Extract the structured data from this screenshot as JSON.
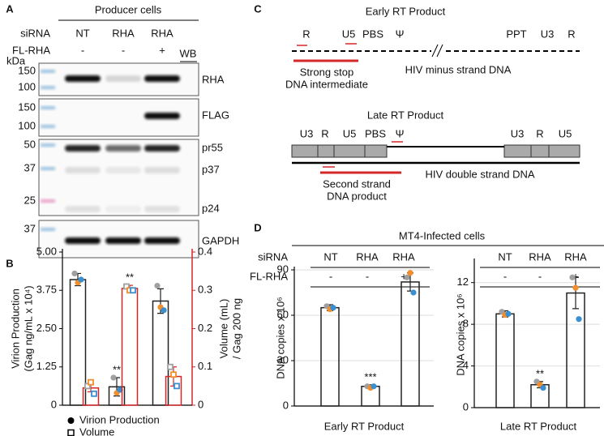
{
  "panel_a": {
    "letter": "A",
    "header": "Producer cells",
    "rows": [
      {
        "label": "siRNA",
        "cells": [
          "NT",
          "RHA",
          "RHA"
        ]
      },
      {
        "label": "FL-RHA",
        "cells": [
          "-",
          "-",
          "+"
        ]
      }
    ],
    "wb": "WB",
    "kda": "kDa",
    "blots": [
      {
        "markers": [
          150,
          100
        ],
        "proteins": [
          "RHA"
        ]
      },
      {
        "markers": [
          150,
          100
        ],
        "proteins": [
          "FLAG"
        ]
      },
      {
        "markers": [
          50,
          37,
          25
        ],
        "proteins": [
          "pr55",
          "p37",
          "p24"
        ]
      },
      {
        "markers": [
          37
        ],
        "proteins": [
          "GAPDH"
        ]
      }
    ]
  },
  "panel_b": {
    "letter": "B"
  },
  "panel_c": {
    "letter": "C",
    "early": {
      "title": "Early RT Product",
      "regions": [
        "R",
        "U5",
        "PBS",
        "Ψ",
        "PPT",
        "U3",
        "R"
      ],
      "strand": "HIV minus strand DNA",
      "product": [
        "Strong stop",
        "DNA intermediate"
      ]
    },
    "late": {
      "title": "Late RT Product",
      "regions": [
        "U3",
        "R",
        "U5",
        "PBS",
        "Ψ",
        "U3",
        "R",
        "U5"
      ],
      "strand": "HIV double strand DNA",
      "product": [
        "Second strand",
        "DNA product"
      ]
    }
  },
  "panel_d": {
    "letter": "D",
    "header": "MT4-Infected cells",
    "rows": [
      {
        "label": "siRNA",
        "cells": [
          "NT",
          "RHA",
          "RHA",
          "NT",
          "RHA",
          "RHA"
        ]
      },
      {
        "label": "FL-RHA",
        "cells": [
          "-",
          "-",
          "+",
          "-",
          "-",
          "+"
        ]
      }
    ]
  },
  "chart_data": [
    {
      "type": "bar",
      "categories": [
        null,
        null,
        null
      ],
      "ylabel": [
        "Virion Production",
        "(Gag ng/mL x 10⁴)"
      ],
      "y2label": [
        "Volume (mL)",
        "/ Gag 200 ng"
      ],
      "ylim": [
        0,
        5
      ],
      "yticks": [
        0,
        1.25,
        {
          "value": 2.5,
          "label": "2.50"
        },
        3.75,
        {
          "value": 5,
          "label": "5.00"
        }
      ],
      "y2lim": [
        0,
        0.4
      ],
      "y2ticks": [
        0,
        0.1,
        0.2,
        0.3,
        0.4
      ],
      "point_colors": [
        "#a0a0a0",
        "#f28e2b",
        "#3a8fd0"
      ],
      "legend": "bottom",
      "series": [
        {
          "name": "Virion Production",
          "color": "#222222",
          "values": [
            4.1,
            0.6,
            3.4
          ],
          "errors": [
            0.2,
            0.3,
            0.4
          ],
          "points": [
            [
              4.3,
              4.0,
              4.1
            ],
            [
              0.9,
              0.4,
              0.5
            ],
            [
              3.9,
              3.2,
              3.1
            ]
          ]
        },
        {
          "name": "Volume",
          "color": "#d62728",
          "axis": "y2",
          "values": [
            0.045,
            0.305,
            0.075
          ],
          "errors": [
            0.01,
            0.008,
            0.025
          ],
          "points": [
            [
              0.05,
              0.06,
              0.03
            ],
            [
              0.31,
              0.3,
              0.3
            ],
            [
              0.1,
              0.08,
              0.05
            ]
          ]
        }
      ],
      "annotations": [
        "**",
        "**"
      ]
    },
    {
      "type": "bar",
      "categories": [
        null,
        null,
        null
      ],
      "xlabel": "Early RT Product",
      "ylabel": [
        "DNA copies x 10⁶"
      ],
      "ylim": [
        0,
        90
      ],
      "yticks": [
        0,
        30,
        60,
        90
      ],
      "grid": true,
      "point_colors": [
        "#a0a0a0",
        "#f28e2b",
        "#3a8fd0"
      ],
      "series": [
        {
          "color": "#222222",
          "values": [
            65,
            13,
            82
          ],
          "errors": [
            2,
            1,
            6
          ],
          "points": [
            [
              66,
              64,
              65
            ],
            [
              13,
              12,
              13
            ],
            [
              85,
              88,
              75
            ]
          ]
        }
      ],
      "annotations": [
        "***"
      ]
    },
    {
      "type": "bar",
      "categories": [
        null,
        null,
        null
      ],
      "xlabel": "Late RT Product",
      "ylabel": [
        "DNA copies x 10⁶"
      ],
      "ylim": [
        0,
        14
      ],
      "yticks": [
        0,
        4,
        8,
        12
      ],
      "grid": true,
      "point_colors": [
        "#a0a0a0",
        "#f28e2b",
        "#3a8fd0"
      ],
      "series": [
        {
          "color": "#222222",
          "values": [
            9,
            2.2,
            11
          ],
          "errors": [
            0.3,
            0.3,
            1.5
          ],
          "points": [
            [
              9.2,
              8.9,
              9
            ],
            [
              2.5,
              2.2,
              1.9
            ],
            [
              12.5,
              11.5,
              8.5
            ]
          ]
        }
      ],
      "annotations": [
        "**"
      ]
    }
  ]
}
